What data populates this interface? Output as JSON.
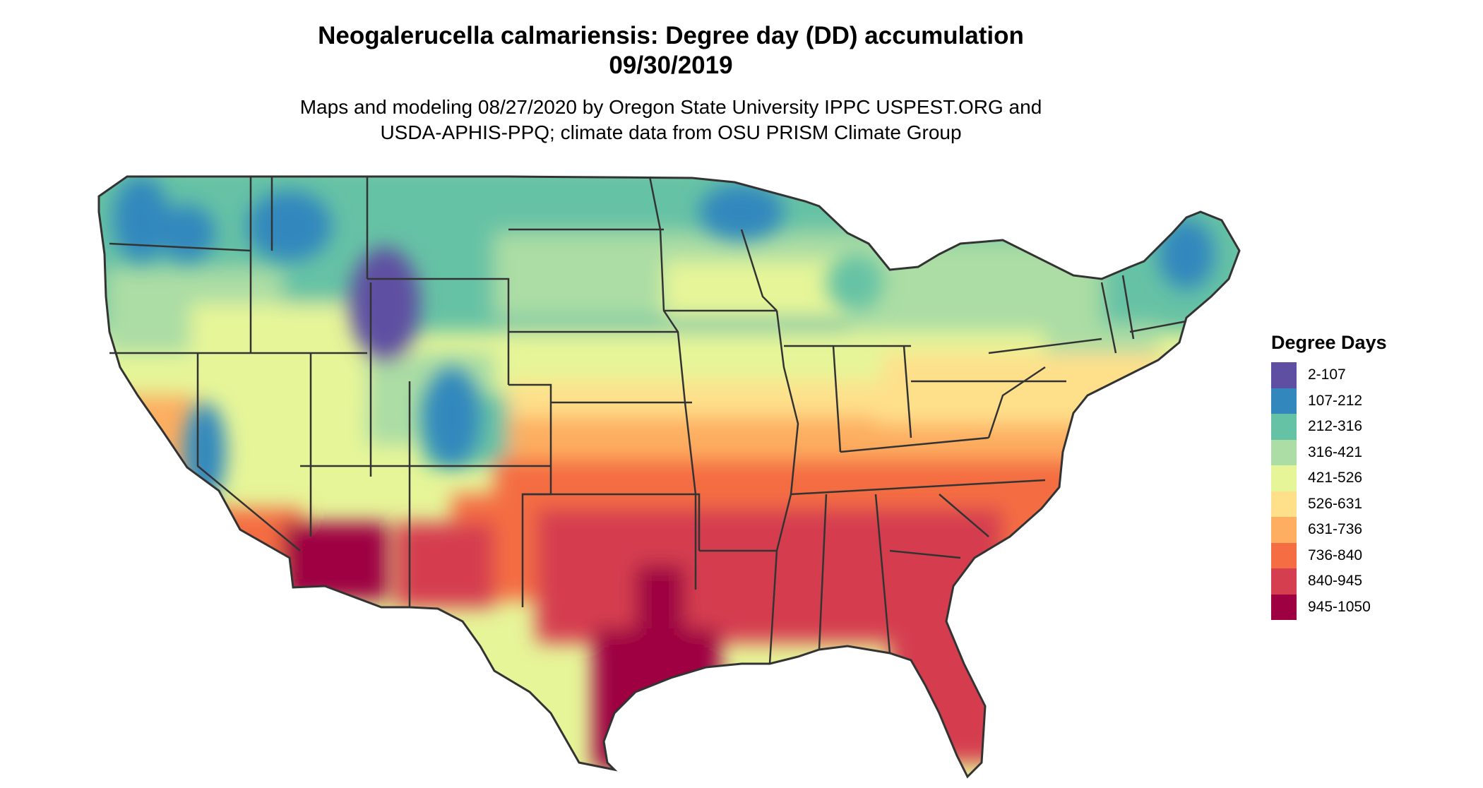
{
  "title": {
    "line1": "Neogalerucella calmariensis: Degree day (DD) accumulation",
    "line2": "09/30/2019"
  },
  "subtitle": {
    "line1": "Maps and modeling 08/27/2020 by Oregon State University IPPC USPEST.ORG and",
    "line2": "USDA-APHIS-PPQ; climate data from OSU PRISM Climate Group"
  },
  "legend": {
    "title": "Degree Days",
    "items": [
      {
        "label": "2-107",
        "color": "#5e4fa2"
      },
      {
        "label": "107-212",
        "color": "#3288bd"
      },
      {
        "label": "212-316",
        "color": "#66c2a5"
      },
      {
        "label": "316-421",
        "color": "#abdda4"
      },
      {
        "label": "421-526",
        "color": "#e6f598"
      },
      {
        "label": "526-631",
        "color": "#fee08b"
      },
      {
        "label": "631-736",
        "color": "#fdae61"
      },
      {
        "label": "736-840",
        "color": "#f46d43"
      },
      {
        "label": "840-945",
        "color": "#d53e4f"
      },
      {
        "label": "945-1050",
        "color": "#9e0142"
      }
    ]
  }
}
